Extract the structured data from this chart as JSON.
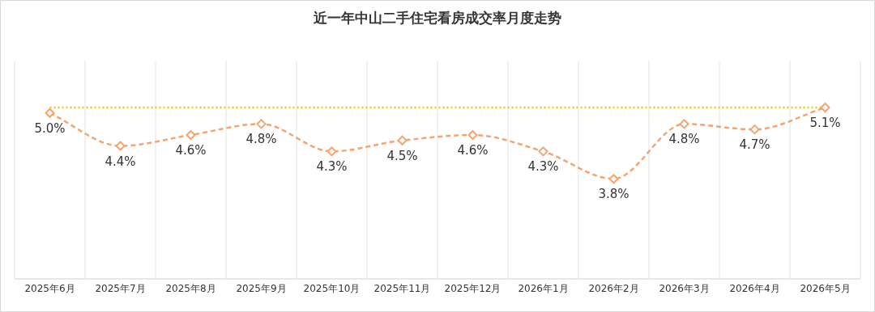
{
  "chart_data": {
    "type": "line",
    "title": "近一年中山二手住宅看房成交率月度走势",
    "categories": [
      "2025年6月",
      "2025年7月",
      "2025年8月",
      "2025年9月",
      "2025年10月",
      "2025年11月",
      "2025年12月",
      "2026年1月",
      "2026年2月",
      "2026年3月",
      "2026年4月",
      "2026年5月"
    ],
    "series": [
      {
        "color": "#f4a470",
        "values": [
          5.0,
          4.4,
          4.6,
          4.8,
          4.3,
          4.5,
          4.6,
          4.3,
          3.8,
          4.8,
          4.7,
          5.1
        ],
        "value_labels": [
          "5.0%",
          "4.4%",
          "4.6%",
          "4.8%",
          "4.3%",
          "4.5%",
          "4.6%",
          "4.3%",
          "3.8%",
          "4.8%",
          "4.7%",
          "5.1%"
        ]
      }
    ],
    "tick_labels": "x",
    "grid": "x",
    "marker": "diamond",
    "line_style": "dashed",
    "ref_lines": [
      {
        "axis": "y",
        "value": 5.1,
        "color": "#f5c518",
        "line_style": "dotted"
      }
    ]
  }
}
